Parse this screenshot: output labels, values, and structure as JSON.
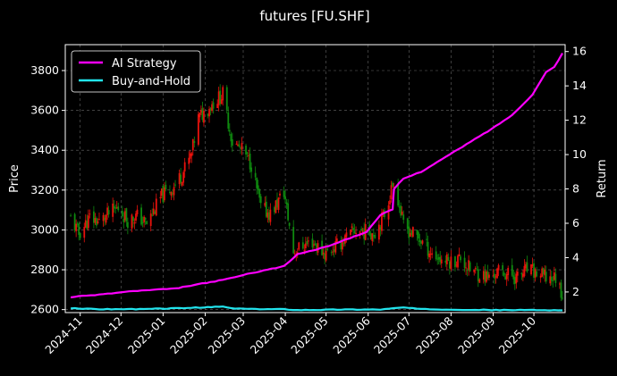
{
  "chart_data": {
    "type": "line",
    "title": "futures [FU.SHF]",
    "ylabel": "Price",
    "y2label": "Return",
    "x_ticks": [
      "2024-11",
      "2024-12",
      "2025-01",
      "2025-02",
      "2025-03",
      "2025-04",
      "2025-05",
      "2025-06",
      "2025-07",
      "2025-08",
      "2025-09",
      "2025-10"
    ],
    "ylim": [
      2585,
      3930
    ],
    "yticks": [
      2600,
      2800,
      3000,
      3200,
      3400,
      3600,
      3800
    ],
    "y2lim": [
      0.8,
      16.4
    ],
    "y2ticks": [
      2,
      4,
      6,
      8,
      10,
      12,
      14,
      16
    ],
    "grid": true,
    "legend_position": "top-left",
    "series": [
      {
        "name": "AI Strategy",
        "axis": "right",
        "color": "#ff00ff",
        "points": [
          [
            "2024-10-25",
            1.7
          ],
          [
            "2024-11-15",
            1.85
          ],
          [
            "2024-12-10",
            2.05
          ],
          [
            "2025-01-10",
            2.2
          ],
          [
            "2025-01-27",
            2.45
          ],
          [
            "2025-02-14",
            2.7
          ],
          [
            "2025-03-10",
            3.15
          ],
          [
            "2025-03-31",
            3.5
          ],
          [
            "2025-04-10",
            4.2
          ],
          [
            "2025-04-30",
            4.6
          ],
          [
            "2025-05-31",
            5.5
          ],
          [
            "2025-06-10",
            6.5
          ],
          [
            "2025-06-19",
            6.8
          ],
          [
            "2025-06-20",
            8.0
          ],
          [
            "2025-06-27",
            8.6
          ],
          [
            "2025-07-10",
            9.0
          ],
          [
            "2025-07-31",
            10.0
          ],
          [
            "2025-08-31",
            11.5
          ],
          [
            "2025-09-15",
            12.3
          ],
          [
            "2025-09-30",
            13.5
          ],
          [
            "2025-10-10",
            14.8
          ],
          [
            "2025-10-16",
            15.1
          ],
          [
            "2025-10-22",
            15.9
          ]
        ]
      },
      {
        "name": "Buy-and-Hold",
        "axis": "right",
        "color": "#22e5ee",
        "points": [
          [
            "2024-10-25",
            1.05
          ],
          [
            "2024-11-15",
            1.0
          ],
          [
            "2024-12-15",
            1.0
          ],
          [
            "2025-01-10",
            1.05
          ],
          [
            "2025-01-31",
            1.1
          ],
          [
            "2025-02-14",
            1.15
          ],
          [
            "2025-02-20",
            1.05
          ],
          [
            "2025-03-10",
            1.0
          ],
          [
            "2025-03-31",
            1.0
          ],
          [
            "2025-04-10",
            0.95
          ],
          [
            "2025-05-15",
            0.98
          ],
          [
            "2025-06-10",
            0.98
          ],
          [
            "2025-06-20",
            1.05
          ],
          [
            "2025-06-27",
            1.1
          ],
          [
            "2025-07-10",
            1.0
          ],
          [
            "2025-08-31",
            0.95
          ],
          [
            "2025-09-30",
            0.95
          ],
          [
            "2025-10-22",
            0.93
          ]
        ]
      },
      {
        "name": "",
        "axis": "left",
        "kind": "candles",
        "points": [
          [
            "2024-10-25",
            3060
          ],
          [
            "2024-10-31",
            2980
          ],
          [
            "2024-11-08",
            3060
          ],
          [
            "2024-11-15",
            3040
          ],
          [
            "2024-11-22",
            3080
          ],
          [
            "2024-11-29",
            3110
          ],
          [
            "2024-12-06",
            3050
          ],
          [
            "2024-12-13",
            3070
          ],
          [
            "2024-12-20",
            3030
          ],
          [
            "2024-12-31",
            3170
          ],
          [
            "2025-01-08",
            3210
          ],
          [
            "2025-01-15",
            3280
          ],
          [
            "2025-01-22",
            3380
          ],
          [
            "2025-01-27",
            3560
          ],
          [
            "2025-02-07",
            3640
          ],
          [
            "2025-02-14",
            3680
          ],
          [
            "2025-02-21",
            3440
          ],
          [
            "2025-02-28",
            3400
          ],
          [
            "2025-03-07",
            3330
          ],
          [
            "2025-03-14",
            3110
          ],
          [
            "2025-03-21",
            3080
          ],
          [
            "2025-03-31",
            3190
          ],
          [
            "2025-04-07",
            2890
          ],
          [
            "2025-04-14",
            2920
          ],
          [
            "2025-04-21",
            2940
          ],
          [
            "2025-04-30",
            2880
          ],
          [
            "2025-05-09",
            2920
          ],
          [
            "2025-05-16",
            2960
          ],
          [
            "2025-05-23",
            3000
          ],
          [
            "2025-05-30",
            2990
          ],
          [
            "2025-06-06",
            2990
          ],
          [
            "2025-06-13",
            3080
          ],
          [
            "2025-06-20",
            3250
          ],
          [
            "2025-06-27",
            3020
          ],
          [
            "2025-07-04",
            2980
          ],
          [
            "2025-07-11",
            2940
          ],
          [
            "2025-07-18",
            2880
          ],
          [
            "2025-07-25",
            2850
          ],
          [
            "2025-08-01",
            2840
          ],
          [
            "2025-08-08",
            2860
          ],
          [
            "2025-08-15",
            2800
          ],
          [
            "2025-08-22",
            2780
          ],
          [
            "2025-08-29",
            2760
          ],
          [
            "2025-09-05",
            2790
          ],
          [
            "2025-09-12",
            2780
          ],
          [
            "2025-09-19",
            2760
          ],
          [
            "2025-09-26",
            2800
          ],
          [
            "2025-10-10",
            2760
          ],
          [
            "2025-10-17",
            2760
          ],
          [
            "2025-10-22",
            2680
          ]
        ]
      }
    ]
  }
}
